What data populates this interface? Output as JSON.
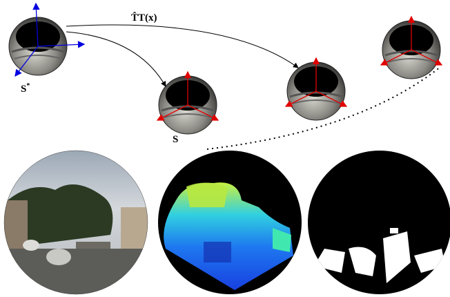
{
  "labels": {
    "transform": "T̂T(x)",
    "reference": "S",
    "reference_sup": "*",
    "current": "S"
  }
}
